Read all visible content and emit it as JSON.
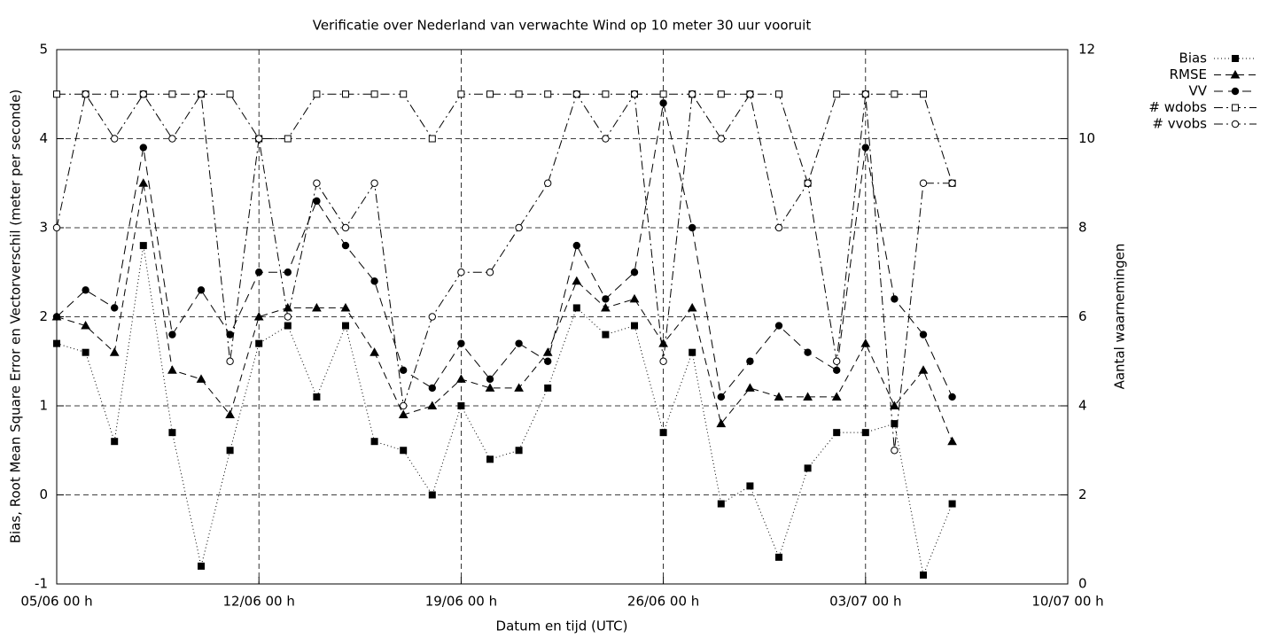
{
  "chart_data": {
    "type": "line",
    "title": "Verificatie over Nederland van verwachte Wind op 10 meter 30 uur vooruit",
    "x_label": "Datum en tijd (UTC)",
    "y_label": "Bias, Root Mean Square Error en Vectorverschil (meter per seconde)",
    "y2_label": "Aantal waarnemingen",
    "x": [
      "05/06 00 h",
      "06/06 00 h",
      "07/06 00 h",
      "08/06 00 h",
      "09/06 00 h",
      "10/06 00 h",
      "11/06 00 h",
      "12/06 00 h",
      "13/06 00 h",
      "14/06 00 h",
      "15/06 00 h",
      "16/06 00 h",
      "17/06 00 h",
      "18/06 00 h",
      "19/06 00 h",
      "20/06 00 h",
      "21/06 00 h",
      "22/06 00 h",
      "23/06 00 h",
      "24/06 00 h",
      "25/06 00 h",
      "26/06 00 h",
      "27/06 00 h",
      "28/06 00 h",
      "29/06 00 h",
      "30/06 00 h",
      "01/07 00 h",
      "02/07 00 h",
      "03/07 00 h",
      "04/07 00 h",
      "05/07 00 h",
      "06/07 00 h"
    ],
    "xlim": [
      "05/06 00 h",
      "10/07 00 h"
    ],
    "xticks": [
      "05/06 00 h",
      "12/06 00 h",
      "19/06 00 h",
      "26/06 00 h",
      "03/07 00 h",
      "10/07 00 h"
    ],
    "ylim": [
      -1,
      5
    ],
    "yticks": [
      -1,
      0,
      1,
      2,
      3,
      4,
      5
    ],
    "y2lim": [
      0,
      12
    ],
    "y2ticks": [
      0,
      2,
      4,
      6,
      8,
      10,
      12
    ],
    "grid": true,
    "legend": "top-right-outside",
    "series": [
      {
        "name": "Bias",
        "color": "#000000",
        "line_style": "dotted",
        "marker": "filled-square",
        "values": [
          1.7,
          1.6,
          0.6,
          2.8,
          0.7,
          -0.8,
          0.5,
          1.7,
          1.9,
          1.1,
          1.9,
          0.6,
          0.5,
          0.0,
          1.0,
          0.4,
          0.5,
          1.2,
          2.1,
          1.8,
          1.9,
          0.7,
          1.6,
          -0.1,
          0.1,
          -0.7,
          0.3,
          0.7,
          0.7,
          0.8,
          -0.9,
          -0.1
        ]
      },
      {
        "name": "RMSE",
        "color": "#000000",
        "line_style": "dashed",
        "marker": "filled-triangle",
        "values": [
          2.0,
          1.9,
          1.6,
          3.5,
          1.4,
          1.3,
          0.9,
          2.0,
          2.1,
          2.1,
          2.1,
          1.6,
          0.9,
          1.0,
          1.3,
          1.2,
          1.2,
          1.6,
          2.4,
          2.1,
          2.2,
          1.7,
          2.1,
          0.8,
          1.2,
          1.1,
          1.1,
          1.1,
          1.7,
          1.0,
          1.4,
          0.6
        ]
      },
      {
        "name": "VV",
        "color": "#000000",
        "line_style": "long-dashed",
        "marker": "filled-circle",
        "values": [
          2.0,
          2.3,
          2.1,
          3.9,
          1.8,
          2.3,
          1.8,
          2.5,
          2.5,
          3.3,
          2.8,
          2.4,
          1.4,
          1.2,
          1.7,
          1.3,
          1.7,
          1.5,
          2.8,
          2.2,
          2.5,
          4.4,
          3.0,
          1.1,
          1.5,
          1.9,
          1.6,
          1.4,
          3.9,
          2.2,
          1.8,
          1.1
        ]
      },
      {
        "name": "# wdobs",
        "color": "#000000",
        "line_style": "dash-dot",
        "marker": "open-square",
        "axis": "y2",
        "values": [
          11,
          11,
          11,
          11,
          11,
          11,
          11,
          10,
          10,
          11,
          11,
          11,
          11,
          10,
          11,
          11,
          11,
          11,
          11,
          11,
          11,
          11,
          11,
          11,
          11,
          11,
          9,
          11,
          11,
          11,
          11,
          9
        ]
      },
      {
        "name": "# vvobs",
        "color": "#000000",
        "line_style": "dash-dot",
        "marker": "open-circle",
        "axis": "y2",
        "values": [
          8,
          11,
          10,
          11,
          10,
          11,
          5,
          10,
          6,
          9,
          8,
          9,
          4,
          6,
          7,
          7,
          8,
          9,
          11,
          10,
          11,
          5,
          11,
          10,
          11,
          8,
          9,
          5,
          11,
          3,
          9,
          9
        ]
      }
    ]
  }
}
